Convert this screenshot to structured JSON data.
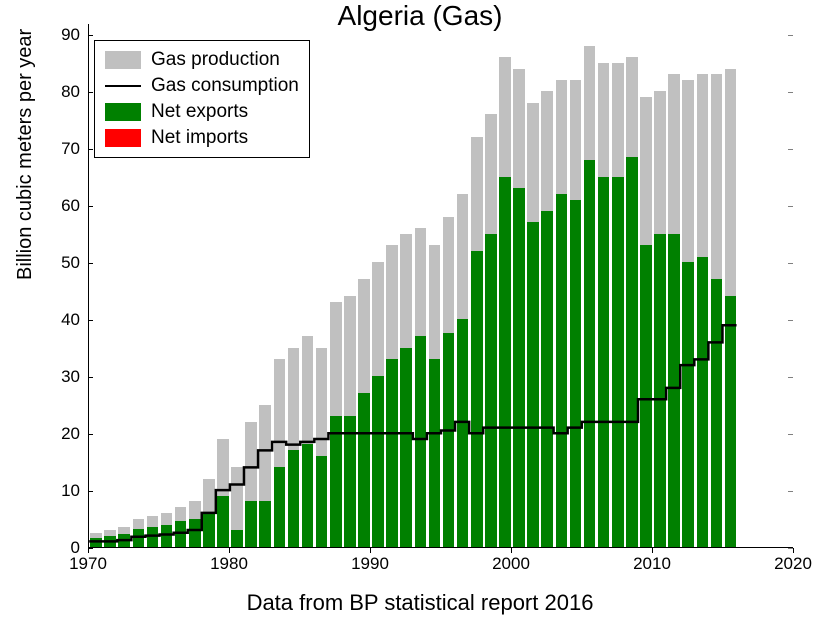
{
  "chart": {
    "type": "bar+line",
    "title": "Algeria (Gas)",
    "ylabel": "Billion cubic meters per year",
    "xlabel": "Data from BP statistical report 2016",
    "title_fontsize": 28,
    "label_fontsize": 20,
    "tick_fontsize": 17,
    "legend_fontsize": 19,
    "background_color": "#ffffff",
    "axis_color": "#000000",
    "xlim": [
      1970,
      2020
    ],
    "ylim": [
      0,
      92
    ],
    "yticks": [
      0,
      10,
      20,
      30,
      40,
      50,
      60,
      70,
      80,
      90
    ],
    "xticks": [
      1970,
      1980,
      1990,
      2000,
      2010,
      2020
    ],
    "bar_width": 0.82,
    "colors": {
      "production": "#c0c0c0",
      "exports": "#008000",
      "imports": "#ff0000",
      "consumption": "#000000"
    },
    "legend": {
      "position": "upper-left",
      "items": [
        {
          "label": "Gas production",
          "color": "#c0c0c0",
          "type": "patch"
        },
        {
          "label": "Gas consumption",
          "color": "#000000",
          "type": "line"
        },
        {
          "label": "Net exports",
          "color": "#008000",
          "type": "patch"
        },
        {
          "label": "Net imports",
          "color": "#ff0000",
          "type": "patch"
        }
      ]
    },
    "years": [
      1970,
      1971,
      1972,
      1973,
      1974,
      1975,
      1976,
      1977,
      1978,
      1979,
      1980,
      1981,
      1982,
      1983,
      1984,
      1985,
      1986,
      1987,
      1988,
      1989,
      1990,
      1991,
      1992,
      1993,
      1994,
      1995,
      1996,
      1997,
      1998,
      1999,
      2000,
      2001,
      2002,
      2003,
      2004,
      2005,
      2006,
      2007,
      2008,
      2009,
      2010,
      2011,
      2012,
      2013,
      2014,
      2015
    ],
    "production": [
      2.5,
      3,
      3.5,
      5,
      5.5,
      6,
      7,
      8,
      12,
      19,
      14,
      22,
      25,
      33,
      35,
      37,
      35,
      43,
      44,
      47,
      50,
      53,
      55,
      56,
      53,
      58,
      62,
      72,
      76,
      86,
      84,
      78,
      80,
      82,
      82,
      88,
      85,
      85,
      86,
      79,
      80,
      83,
      82,
      83,
      83,
      84
    ],
    "exports": [
      1.5,
      2,
      2.3,
      3.2,
      3.5,
      3.8,
      4.5,
      5,
      6,
      9,
      3,
      8,
      8,
      14,
      17,
      18,
      16,
      23,
      23,
      27,
      30,
      33,
      35,
      37,
      33,
      37.5,
      40,
      52,
      55,
      65,
      63,
      57,
      59,
      62,
      61,
      68,
      65,
      65,
      68.5,
      53,
      55,
      55,
      50,
      51,
      47,
      44
    ],
    "imports": [
      0,
      0,
      0,
      0,
      0,
      0,
      0,
      0,
      0,
      0,
      0,
      0,
      0,
      0,
      0,
      0,
      0,
      0,
      0,
      0,
      0,
      0,
      0,
      0,
      0,
      0,
      0,
      0,
      0,
      0,
      0,
      0,
      0,
      0,
      0,
      0,
      0,
      0,
      0,
      0,
      0,
      0,
      0,
      0,
      0,
      0
    ],
    "consumption": [
      1,
      1,
      1.2,
      1.8,
      2,
      2.2,
      2.5,
      3,
      6,
      10,
      11,
      14,
      17,
      18.5,
      18,
      18.5,
      19,
      20,
      20,
      20,
      20,
      20,
      20,
      19,
      20,
      20.5,
      22,
      20,
      21,
      21,
      21,
      21,
      21,
      20,
      21,
      22,
      22,
      22,
      22,
      26,
      26,
      28,
      32,
      33,
      36,
      39
    ],
    "consumption_line_width": 2.5
  }
}
